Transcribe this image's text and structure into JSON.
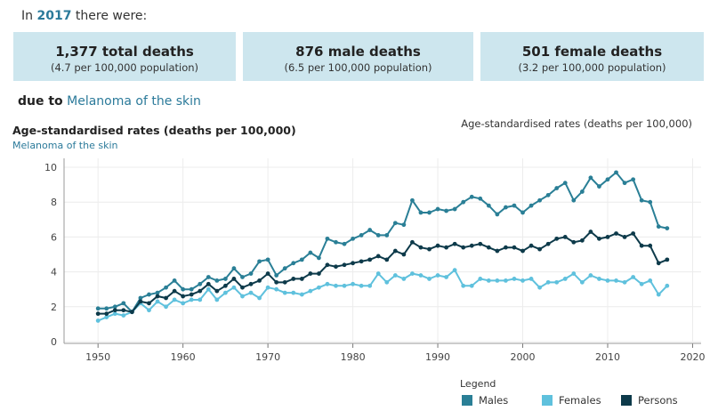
{
  "header": {
    "in_label": "In",
    "year": "2017",
    "there_were": "there were:"
  },
  "cards": [
    {
      "big": "1,377 total deaths",
      "small": "(4.7 per 100,000 population)"
    },
    {
      "big": "876 male deaths",
      "small": "(6.5 per 100,000 population)"
    },
    {
      "big": "501 female deaths",
      "small": "(3.2 per 100,000 population)"
    }
  ],
  "due_to": {
    "label": "due to",
    "cause": "Melanoma of the skin"
  },
  "chart_title": "Age-standardised rates (deaths per 100,000)",
  "chart_subtitle": "Melanoma of the skin",
  "right_title": "Age-standardised rates (deaths per 100,000)",
  "legend": {
    "title": "Legend"
  },
  "colors": {
    "males": "#2a7f96",
    "females": "#5fc1dd",
    "persons": "#0d3a4a"
  },
  "chart_data": {
    "type": "line",
    "xlim": [
      1946,
      2021
    ],
    "ylim": [
      0,
      10
    ],
    "x_ticks": [
      1950,
      1960,
      1970,
      1980,
      1990,
      2000,
      2010,
      2020
    ],
    "y_ticks": [
      0,
      2,
      4,
      6,
      8,
      10
    ],
    "x": [
      1950,
      1951,
      1952,
      1953,
      1954,
      1955,
      1956,
      1957,
      1958,
      1959,
      1960,
      1961,
      1962,
      1963,
      1964,
      1965,
      1966,
      1967,
      1968,
      1969,
      1970,
      1971,
      1972,
      1973,
      1974,
      1975,
      1976,
      1977,
      1978,
      1979,
      1980,
      1981,
      1982,
      1983,
      1984,
      1985,
      1986,
      1987,
      1988,
      1989,
      1990,
      1991,
      1992,
      1993,
      1994,
      1995,
      1996,
      1997,
      1998,
      1999,
      2000,
      2001,
      2002,
      2003,
      2004,
      2005,
      2006,
      2007,
      2008,
      2009,
      2010,
      2011,
      2012,
      2013,
      2014,
      2015,
      2016,
      2017
    ],
    "series": [
      {
        "name": "Males",
        "values": [
          1.9,
          1.9,
          2.0,
          2.2,
          1.7,
          2.5,
          2.7,
          2.8,
          3.1,
          3.5,
          3.0,
          3.0,
          3.3,
          3.7,
          3.5,
          3.6,
          4.2,
          3.7,
          3.9,
          4.6,
          4.7,
          3.8,
          4.2,
          4.5,
          4.7,
          5.1,
          4.8,
          5.9,
          5.7,
          5.6,
          5.9,
          6.1,
          6.4,
          6.1,
          6.1,
          6.8,
          6.7,
          8.1,
          7.4,
          7.4,
          7.6,
          7.5,
          7.6,
          8.0,
          8.3,
          8.2,
          7.8,
          7.3,
          7.7,
          7.8,
          7.4,
          7.8,
          8.1,
          8.4,
          8.8,
          9.1,
          8.1,
          8.6,
          9.4,
          8.9,
          9.3,
          9.7,
          9.1,
          9.3,
          8.1,
          8.0,
          6.6,
          6.5
        ]
      },
      {
        "name": "Females",
        "values": [
          1.2,
          1.4,
          1.6,
          1.5,
          1.7,
          2.2,
          1.8,
          2.3,
          2.0,
          2.4,
          2.2,
          2.4,
          2.4,
          3.0,
          2.4,
          2.8,
          3.1,
          2.6,
          2.8,
          2.5,
          3.1,
          3.0,
          2.8,
          2.8,
          2.7,
          2.9,
          3.1,
          3.3,
          3.2,
          3.2,
          3.3,
          3.2,
          3.2,
          3.9,
          3.4,
          3.8,
          3.6,
          3.9,
          3.8,
          3.6,
          3.8,
          3.7,
          4.1,
          3.2,
          3.2,
          3.6,
          3.5,
          3.5,
          3.5,
          3.6,
          3.5,
          3.6,
          3.1,
          3.4,
          3.4,
          3.6,
          3.9,
          3.4,
          3.8,
          3.6,
          3.5,
          3.5,
          3.4,
          3.7,
          3.3,
          3.5,
          2.7,
          3.2
        ]
      },
      {
        "name": "Persons",
        "values": [
          1.6,
          1.6,
          1.8,
          1.8,
          1.7,
          2.3,
          2.2,
          2.6,
          2.5,
          2.9,
          2.6,
          2.7,
          2.9,
          3.3,
          2.9,
          3.2,
          3.6,
          3.1,
          3.3,
          3.5,
          3.9,
          3.4,
          3.4,
          3.6,
          3.6,
          3.9,
          3.9,
          4.4,
          4.3,
          4.4,
          4.5,
          4.6,
          4.7,
          4.9,
          4.7,
          5.2,
          5.0,
          5.7,
          5.4,
          5.3,
          5.5,
          5.4,
          5.6,
          5.4,
          5.5,
          5.6,
          5.4,
          5.2,
          5.4,
          5.4,
          5.2,
          5.5,
          5.3,
          5.6,
          5.9,
          6.0,
          5.7,
          5.8,
          6.3,
          5.9,
          6.0,
          6.2,
          6.0,
          6.2,
          5.5,
          5.5,
          4.5,
          4.7
        ]
      }
    ]
  }
}
